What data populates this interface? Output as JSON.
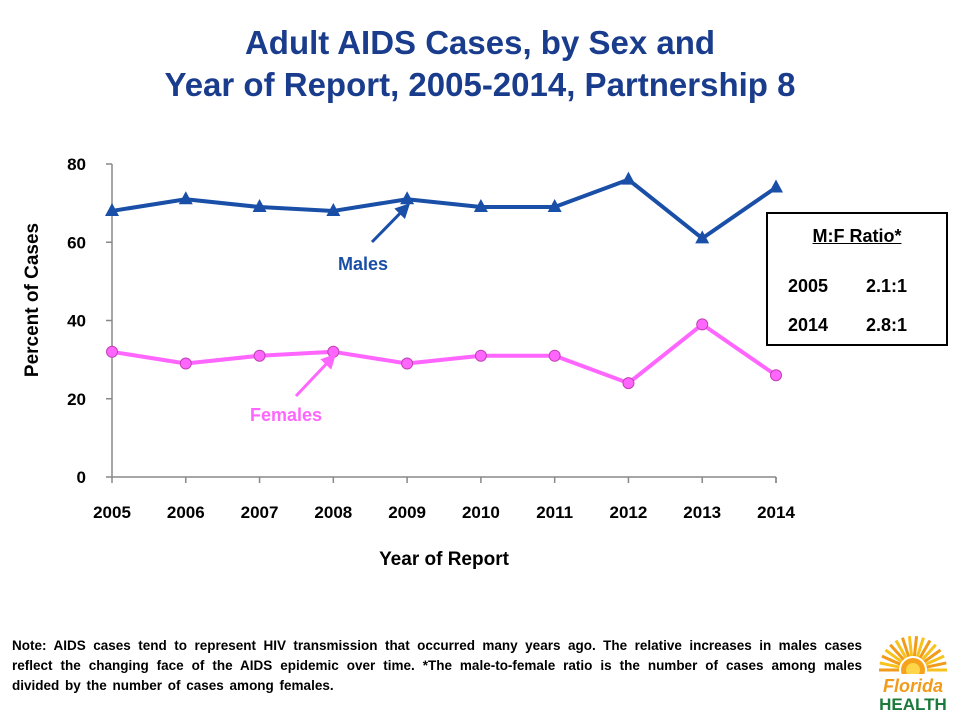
{
  "title": {
    "line1": "Adult AIDS Cases, by Sex and",
    "line2": "Year of Report, 2005-2014, Partnership 8"
  },
  "chart_data": {
    "type": "line",
    "x": [
      "2005",
      "2006",
      "2007",
      "2008",
      "2009",
      "2010",
      "2011",
      "2012",
      "2013",
      "2014"
    ],
    "series": [
      {
        "name": "Males",
        "values": [
          68,
          71,
          69,
          68,
          71,
          69,
          69,
          76,
          61,
          74
        ],
        "color": "#1a4fa8",
        "marker": "triangle"
      },
      {
        "name": "Females",
        "values": [
          32,
          29,
          31,
          32,
          29,
          31,
          31,
          24,
          39,
          26
        ],
        "color": "#ff66ff",
        "marker": "circle"
      }
    ],
    "xlabel": "Year of Report",
    "ylabel": "Percent of Cases",
    "ylim": [
      0,
      80
    ],
    "yticks": [
      "0",
      "20",
      "40",
      "60",
      "80"
    ],
    "grid": false,
    "annotations": {
      "males_label": "Males",
      "females_label": "Females"
    }
  },
  "ratio_box": {
    "title": "M:F Ratio*",
    "rows": [
      {
        "year": "2005",
        "ratio": "2.1:1"
      },
      {
        "year": "2014",
        "ratio": "2.8:1"
      }
    ]
  },
  "note": "Note: AIDS cases tend to represent HIV transmission that occurred many years ago.  The relative increases in males cases reflect the changing face of the AIDS epidemic over time. *The male-to-female ratio is the number of cases among males divided by the number of cases among females.",
  "logo": {
    "line1": "Florida",
    "line2": "HEALTH"
  }
}
